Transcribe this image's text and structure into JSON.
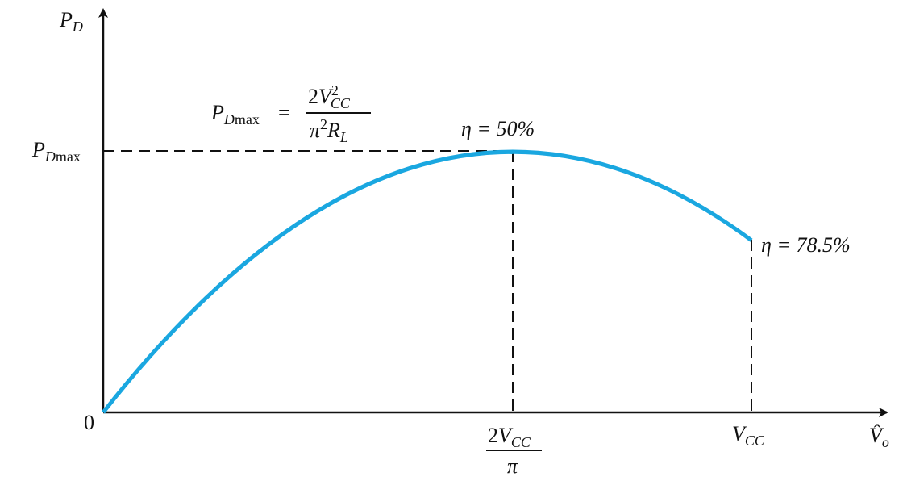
{
  "y_axis_label": {
    "symbol": "P",
    "subscript": "D"
  },
  "x_axis_label": {
    "symbol": "V̂",
    "subscript": "o"
  },
  "origin_label": "0",
  "y_marker": {
    "symbol": "P",
    "subscript": "D",
    "subscript_tail": "max"
  },
  "formula": {
    "lhs_symbol": "P",
    "lhs_subscript": "D",
    "lhs_subscript_tail": "max",
    "equals": "=",
    "numerator_coefficient": "2",
    "numerator_symbol": "V",
    "numerator_superscript": "2",
    "numerator_subscript": "CC",
    "denominator_pi": "π",
    "denominator_superscript": "2",
    "denominator_symbol": "R",
    "denominator_subscript": "L"
  },
  "x_markers": [
    {
      "coefficient": "2",
      "symbol": "V",
      "subscript": "CC",
      "denominator": "π"
    },
    {
      "symbol": "V",
      "subscript": "CC"
    }
  ],
  "annotations": [
    "η = 50%",
    "η = 78.5%"
  ]
}
